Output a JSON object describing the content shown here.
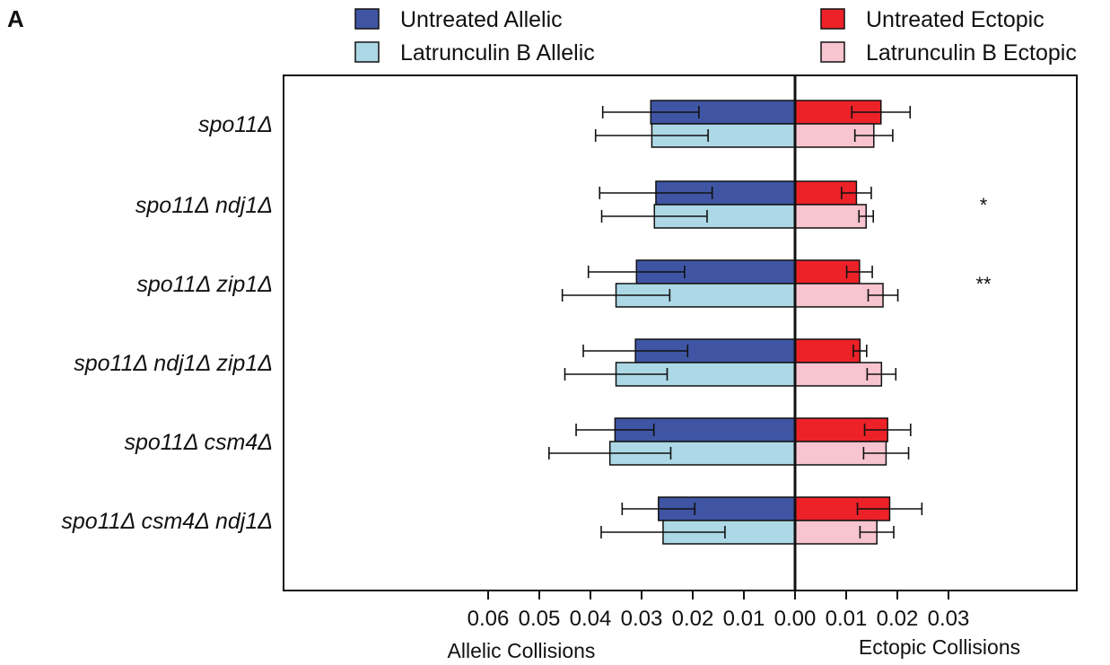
{
  "panel_label": "A",
  "chart_data": {
    "type": "bar",
    "orientation": "horizontal-diverging",
    "categories": [
      "spo11Δ",
      "spo11Δ ndj1Δ",
      "spo11Δ zip1Δ",
      "spo11Δ ndj1Δ zip1Δ",
      "spo11Δ csm4Δ",
      "spo11Δ csm4Δ ndj1Δ"
    ],
    "allelic": {
      "xlabel": "Allelic Collisions",
      "xlim": [
        0.06,
        0
      ],
      "ticks": [
        "0.06",
        "0.05",
        "0.04",
        "0.03",
        "0.02",
        "0.01",
        "0.00"
      ],
      "series": [
        {
          "name": "Untreated Allelic",
          "color": "#3f55a4",
          "values": [
            0.0282,
            0.0272,
            0.031,
            0.0312,
            0.0352,
            0.0267
          ],
          "errors": [
            0.0094,
            0.011,
            0.0094,
            0.0102,
            0.0076,
            0.0071
          ]
        },
        {
          "name": "Latrunculin B Allelic",
          "color": "#add8e6",
          "values": [
            0.028,
            0.0275,
            0.035,
            0.035,
            0.0362,
            0.0258
          ],
          "errors": [
            0.011,
            0.0103,
            0.0105,
            0.01,
            0.0119,
            0.0121
          ]
        }
      ]
    },
    "ectopic": {
      "xlabel": "Ectopic Collisions",
      "xlim": [
        0,
        0.034
      ],
      "ticks": [
        "0.01",
        "0.02",
        "0.03"
      ],
      "series": [
        {
          "name": "Untreated Ectopic",
          "color": "#ed2229",
          "values": [
            0.0168,
            0.012,
            0.0126,
            0.0127,
            0.0181,
            0.0185
          ],
          "errors": [
            0.0057,
            0.0029,
            0.0025,
            0.0013,
            0.0045,
            0.0063
          ]
        },
        {
          "name": "Latrunculin B Ectopic",
          "color": "#f7c4cf",
          "values": [
            0.0154,
            0.0139,
            0.0172,
            0.0169,
            0.0178,
            0.016
          ],
          "errors": [
            0.0037,
            0.0014,
            0.0029,
            0.0028,
            0.0044,
            0.0033
          ]
        }
      ]
    },
    "annotations": [
      {
        "category": "spo11Δ ndj1Δ",
        "text": "*"
      },
      {
        "category": "spo11Δ zip1Δ",
        "text": "**"
      }
    ],
    "legend_position": "top"
  }
}
